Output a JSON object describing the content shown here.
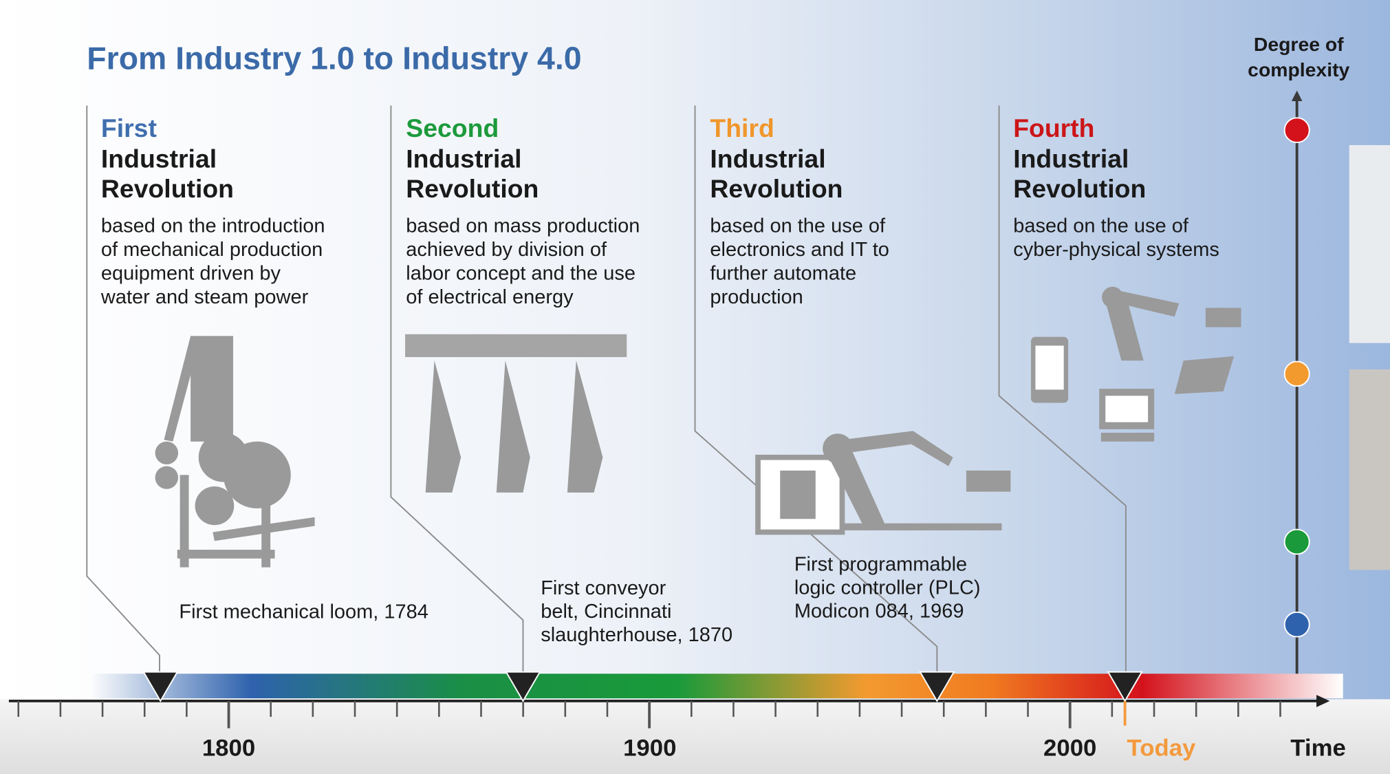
{
  "title": "From Industry 1.0 to Industry 4.0",
  "complexity_label": [
    "Degree of",
    "complexity"
  ],
  "columns": [
    {
      "ordinal": "First",
      "heading": [
        "Industrial",
        "Revolution"
      ],
      "description": [
        "based on the introduction",
        "of  mechanical production",
        "equipment driven by",
        "water and steam power"
      ],
      "milestone": [
        "First mechanical loom, 1784"
      ]
    },
    {
      "ordinal": "Second",
      "heading": [
        "Industrial",
        "Revolution"
      ],
      "description": [
        "based on mass production",
        "achieved by division of",
        "labor concept and the use",
        "of electrical energy"
      ],
      "milestone": [
        "First conveyor",
        "belt, Cincinnati",
        "slaughterhouse, 1870"
      ]
    },
    {
      "ordinal": "Third",
      "heading": [
        "Industrial",
        "Revolution"
      ],
      "description": [
        "based on the use of",
        "electronics and IT to",
        "further automate",
        "production"
      ],
      "milestone": [
        "First programmable",
        "logic controller (PLC)",
        "Modicon 084, 1969"
      ]
    },
    {
      "ordinal": "Fourth",
      "heading": [
        "Industrial",
        "Revolution"
      ],
      "description": [
        "based on the use of",
        "cyber-physical systems"
      ],
      "milestone": []
    }
  ],
  "axis": {
    "labels": [
      "1800",
      "1900",
      "2000"
    ],
    "today": "Today",
    "time": "Time"
  }
}
